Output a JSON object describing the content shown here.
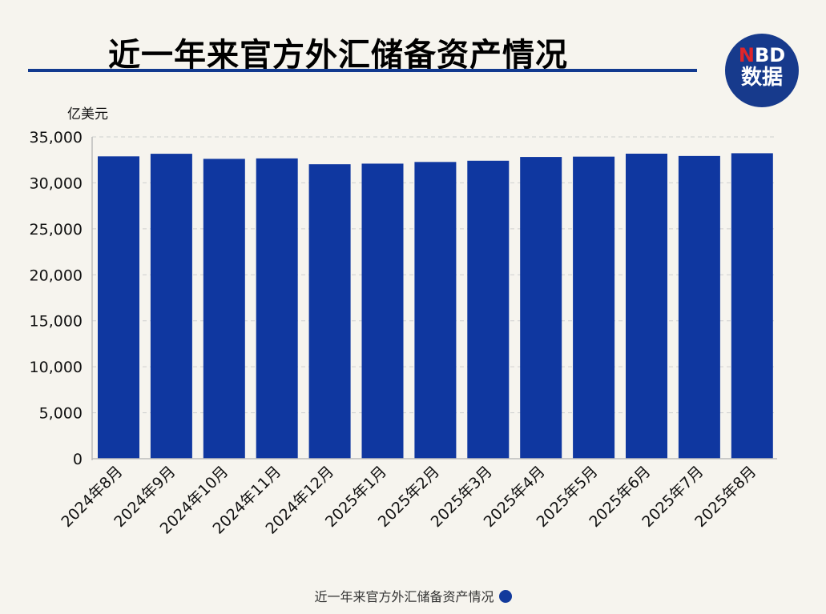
{
  "title": "近一年来官方外汇储备资产情况",
  "logo": {
    "prefix": "N",
    "rest": "BD",
    "line2": "数据"
  },
  "caption": "近一年来官方外汇储备资产情况",
  "colors": {
    "bar": "#0f37a0",
    "title_rule": "#123a8f",
    "background": "#f6f4ee"
  },
  "chart_data": {
    "type": "bar",
    "title": "近一年来官方外汇储备资产情况",
    "ylabel": "亿美元",
    "xlabel": "",
    "ylim": [
      0,
      35000
    ],
    "yticks": [
      0,
      5000,
      10000,
      15000,
      20000,
      25000,
      30000,
      35000
    ],
    "ytick_labels": [
      "0",
      "5,000",
      "10,000",
      "15,000",
      "20,000",
      "25,000",
      "30,000",
      "35,000"
    ],
    "grid": "horizontal dashed",
    "categories": [
      "2024年8月",
      "2024年9月",
      "2024年10月",
      "2024年11月",
      "2024年12月",
      "2025年1月",
      "2025年2月",
      "2025年3月",
      "2025年4月",
      "2025年5月",
      "2025年6月",
      "2025年7月",
      "2025年8月"
    ],
    "values": [
      32882,
      33164,
      32610,
      32659,
      32024,
      32090,
      32272,
      32407,
      32817,
      32853,
      33174,
      32922,
      33222
    ]
  }
}
